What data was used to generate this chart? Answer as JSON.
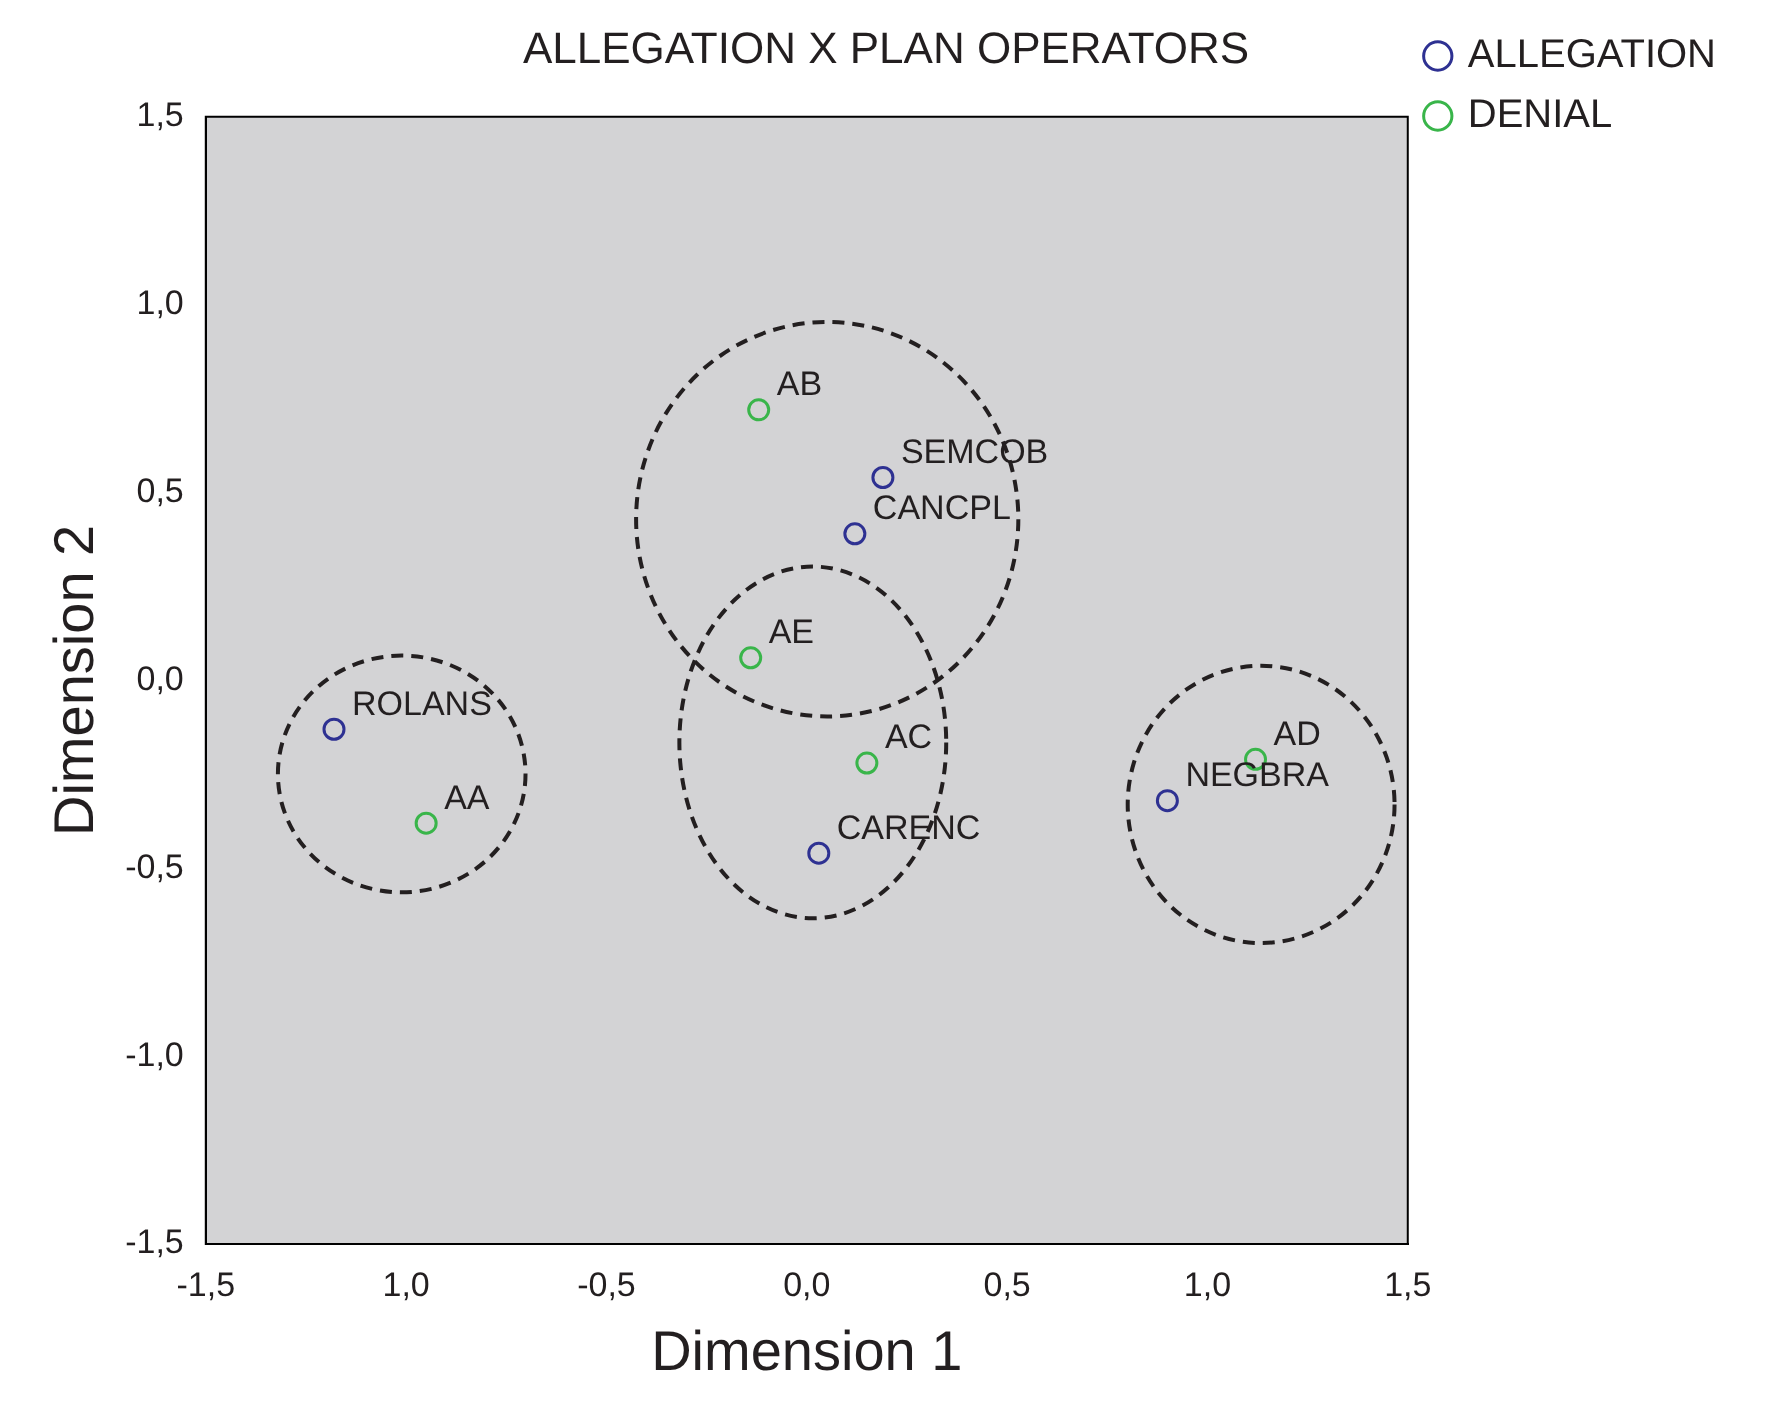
{
  "chart_data": {
    "type": "scatter",
    "title": "ALLEGATION X PLAN OPERATORS",
    "xlabel": "Dimension 1",
    "ylabel": "Dimension 2",
    "series": [
      {
        "name": "ALLEGATION",
        "color": "#2e3192",
        "x": [
          -1.18,
          0.19,
          0.12,
          0.03,
          0.9
        ],
        "values": [
          -0.13,
          0.54,
          0.39,
          -0.46,
          -0.32
        ]
      },
      {
        "name": "DENIAL",
        "color": "#39b54a",
        "x": [
          -0.95,
          -0.12,
          -0.14,
          0.15,
          1.12
        ],
        "values": [
          -0.38,
          0.72,
          0.06,
          -0.22,
          -0.21
        ]
      }
    ],
    "annotations": [
      {
        "text": "ROLANS",
        "x": -1.18,
        "y": -0.13
      },
      {
        "text": "SEMCOB",
        "x": 0.19,
        "y": 0.54
      },
      {
        "text": "CANCPL",
        "x": 0.12,
        "y": 0.39
      },
      {
        "text": "CARENC",
        "x": 0.03,
        "y": -0.46
      },
      {
        "text": "NEGBRA",
        "x": 0.9,
        "y": -0.32
      },
      {
        "text": "AA",
        "x": -0.95,
        "y": -0.38
      },
      {
        "text": "AB",
        "x": -0.12,
        "y": 0.72
      },
      {
        "text": "AE",
        "x": -0.14,
        "y": 0.06
      },
      {
        "text": "AC",
        "x": 0.15,
        "y": -0.22
      },
      {
        "text": "AD",
        "x": 1.12,
        "y": -0.21
      }
    ],
    "xlim": [
      -1.5,
      1.5
    ],
    "xticks": [
      {
        "value": -1.5,
        "label": "-1,5"
      },
      {
        "value": -1,
        "label": "1,0"
      },
      {
        "value": -0.5,
        "label": "-0,5"
      },
      {
        "value": 0,
        "label": "0,0"
      },
      {
        "value": 0.5,
        "label": "0,5"
      },
      {
        "value": 1,
        "label": "1,0"
      },
      {
        "value": 1.5,
        "label": "1,5"
      }
    ],
    "ylim": [
      -1.5,
      1.5
    ],
    "yticks": [
      {
        "value": -1.5,
        "label": "-1,5"
      },
      {
        "value": -1,
        "label": "-1,0"
      },
      {
        "value": -0.5,
        "label": "-0,5"
      },
      {
        "value": 0,
        "label": "0,0"
      },
      {
        "value": 0.5,
        "label": "0,5"
      },
      {
        "value": 1,
        "label": "1,0"
      },
      {
        "value": 1.5,
        "label": "1,5"
      }
    ],
    "grid": false,
    "legend": "top right",
    "marker": "circle"
  }
}
